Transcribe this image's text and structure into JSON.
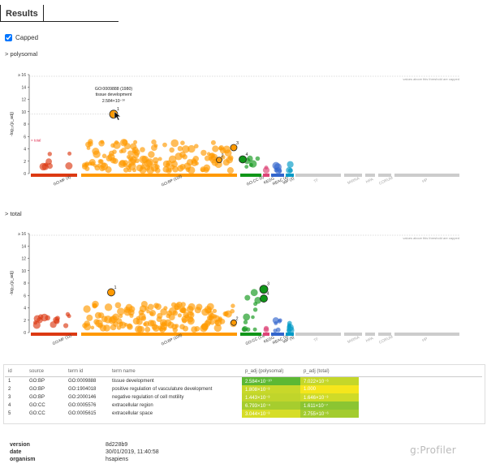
{
  "tab": {
    "results_label": "Results"
  },
  "capped": {
    "label": "Capped",
    "checked": true
  },
  "chart_data": [
    {
      "type": "scatter",
      "section_label": "> polysomal",
      "ylabel": "-log₁₀(p_adj)",
      "ylim": [
        0,
        16
      ],
      "yticks": [
        "0",
        "2",
        "4",
        "6",
        "8",
        "10",
        "12",
        "14",
        "≥ 16"
      ],
      "threshold_note": "values above this threshold are capped",
      "threshold_marker_label": "> total",
      "sources": [
        {
          "name": "GO:MF (4)",
          "color": "#dc3912"
        },
        {
          "name": "GO:BP (116)",
          "color": "#ff9900"
        },
        {
          "name": "GO:CC (6)",
          "color": "#109618"
        },
        {
          "name": "KEGG",
          "color": "#dd4477"
        },
        {
          "name": "REAC (4)",
          "color": "#3366cc"
        },
        {
          "name": "WP (2)",
          "color": "#0099c6"
        },
        {
          "name": "TF",
          "color": "#cccccc"
        },
        {
          "name": "MIRNA",
          "color": "#cccccc"
        },
        {
          "name": "HPA",
          "color": "#cccccc"
        },
        {
          "name": "CORUM",
          "color": "#cccccc"
        },
        {
          "name": "HP",
          "color": "#cccccc"
        }
      ],
      "tooltip": {
        "term_id": "GO:0009888 (1980)",
        "term_name": "tissue development",
        "value": "2.584×10⁻¹⁰"
      },
      "highlight_labels": [
        "1",
        "2",
        "3",
        "4"
      ]
    },
    {
      "type": "scatter",
      "section_label": "> total",
      "ylabel": "-log₁₀(p_adj)",
      "ylim": [
        0,
        16
      ],
      "yticks": [
        "0",
        "2",
        "4",
        "6",
        "8",
        "10",
        "12",
        "14",
        "≥ 16"
      ],
      "threshold_note": "values above this threshold are capped",
      "sources": [
        {
          "name": "GO:MF (11)",
          "color": "#dc3912"
        },
        {
          "name": "GO:BP (109)",
          "color": "#ff9900"
        },
        {
          "name": "GO:CC (13)",
          "color": "#109618"
        },
        {
          "name": "KEGG",
          "color": "#dd4477"
        },
        {
          "name": "REAC (3)",
          "color": "#3366cc"
        },
        {
          "name": "WP (5)",
          "color": "#0099c6"
        },
        {
          "name": "TF",
          "color": "#cccccc"
        },
        {
          "name": "MIRNA",
          "color": "#cccccc"
        },
        {
          "name": "HPA",
          "color": "#cccccc"
        },
        {
          "name": "CORUM",
          "color": "#cccccc"
        },
        {
          "name": "HP",
          "color": "#cccccc"
        }
      ],
      "highlight_labels": [
        "1",
        "2",
        "3",
        "4"
      ]
    }
  ],
  "table": {
    "headers": [
      "id",
      "source",
      "term id",
      "term name",
      "p_adj (polysomal)",
      "p_adj (total)"
    ],
    "rows": [
      {
        "id": "1",
        "source": "GO:BP",
        "term_id": "GO:0009888",
        "term_name": "tissue development",
        "p1": "2.584×10⁻¹⁰",
        "p2": "7.022×10⁻⁶",
        "c1": "#5cb834",
        "c2": "#c4d72a"
      },
      {
        "id": "2",
        "source": "GO:BP",
        "term_id": "GO:1904018",
        "term_name": "positive regulation of vasculature development",
        "p1": "1.808×10⁻³",
        "p2": "1.000",
        "c1": "#c8d82a",
        "c2": "#f5e61c"
      },
      {
        "id": "3",
        "source": "GO:BP",
        "term_id": "GO:2000146",
        "term_name": "negative regulation of cell motility",
        "p1": "1.443×10⁻³",
        "p2": "1.646×10⁻³",
        "c1": "#c0d52b",
        "c2": "#cfdb28"
      },
      {
        "id": "4",
        "source": "GO:CC",
        "term_id": "GO:0005576",
        "term_name": "extracellular region",
        "p1": "6.793×10⁻⁴",
        "p2": "1.611×10⁻⁷",
        "c1": "#a6cd2e",
        "c2": "#8bc532"
      },
      {
        "id": "5",
        "source": "GO:CC",
        "term_id": "GO:0005615",
        "term_name": "extracellular space",
        "p1": "3.044×10⁻³",
        "p2": "2.755×10⁻⁶",
        "c1": "#d6dd27",
        "c2": "#a3cc2f"
      }
    ]
  },
  "meta": {
    "version_label": "version",
    "version": "8d228b9",
    "date_label": "date",
    "date": "30/01/2019, 11:40:58",
    "organism_label": "organism",
    "organism": "hsapiens"
  },
  "logo": "g:Profiler"
}
